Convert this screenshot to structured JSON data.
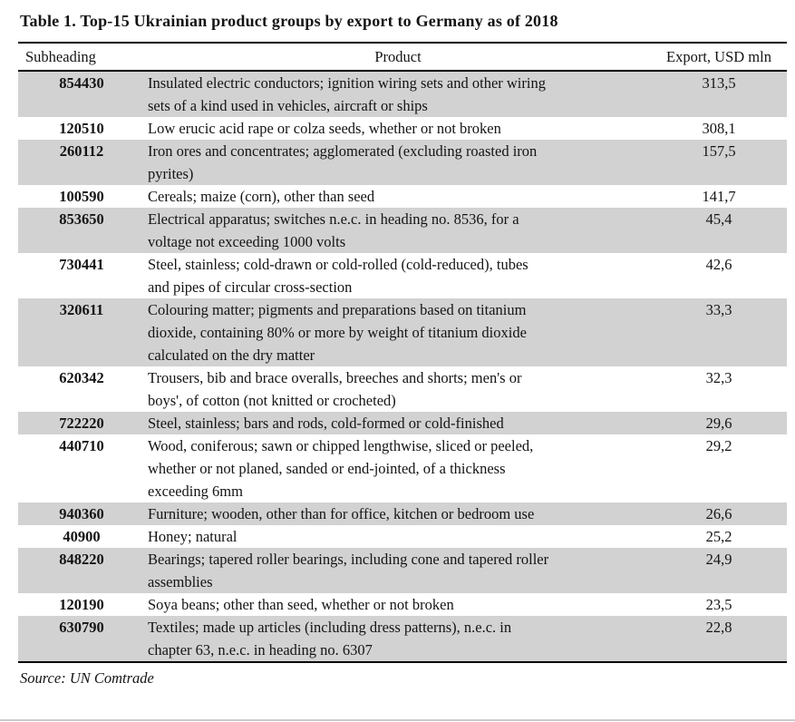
{
  "title": "Table 1. Top-15 Ukrainian product groups by export to Germany as of 2018",
  "columns": {
    "subheading": "Subheading",
    "product": "Product",
    "export": "Export, USD mln"
  },
  "rows": [
    {
      "subheading": "854430",
      "product": "Insulated electric conductors; ignition wiring sets and other wiring\nsets of a kind used in vehicles, aircraft or ships",
      "export": "313,5"
    },
    {
      "subheading": "120510",
      "product": "Low erucic acid rape or colza seeds, whether or not broken",
      "export": "308,1"
    },
    {
      "subheading": "260112",
      "product": "Iron ores and concentrates; agglomerated (excluding roasted iron\npyrites)",
      "export": "157,5"
    },
    {
      "subheading": "100590",
      "product": "Cereals; maize (corn), other than seed",
      "export": "141,7"
    },
    {
      "subheading": "853650",
      "product": "Electrical apparatus; switches n.e.c. in heading no. 8536, for a\nvoltage not exceeding 1000 volts",
      "export": "45,4"
    },
    {
      "subheading": "730441",
      "product": "Steel, stainless; cold-drawn or cold-rolled (cold-reduced), tubes\nand pipes of circular cross-section",
      "export": "42,6"
    },
    {
      "subheading": "320611",
      "product": "Colouring matter; pigments and preparations based on titanium\ndioxide, containing 80% or more by weight of titanium dioxide\ncalculated on the dry matter",
      "export": "33,3"
    },
    {
      "subheading": "620342",
      "product": "Trousers, bib and brace overalls, breeches and shorts; men's or\nboys', of cotton (not knitted or crocheted)",
      "export": "32,3"
    },
    {
      "subheading": "722220",
      "product": "Steel, stainless; bars and rods, cold-formed or cold-finished",
      "export": "29,6"
    },
    {
      "subheading": "440710",
      "product": "Wood, coniferous; sawn or chipped lengthwise, sliced or peeled,\nwhether or not planed, sanded or end-jointed, of a thickness\nexceeding 6mm",
      "export": "29,2"
    },
    {
      "subheading": "940360",
      "product": "Furniture; wooden, other than for office, kitchen or bedroom use",
      "export": "26,6"
    },
    {
      "subheading": "40900",
      "product": "Honey; natural",
      "export": "25,2"
    },
    {
      "subheading": "848220",
      "product": "Bearings; tapered roller bearings, including cone and tapered roller\nassemblies",
      "export": "24,9"
    },
    {
      "subheading": "120190",
      "product": "Soya beans; other than seed, whether or not broken",
      "export": "23,5"
    },
    {
      "subheading": "630790",
      "product": "Textiles; made up articles (including dress patterns), n.e.c. in\nchapter 63, n.e.c. in heading no. 6307",
      "export": "22,8"
    }
  ],
  "source": "Source: UN Comtrade",
  "colors": {
    "row_shade": "#d2d2d2",
    "rule": "#000000",
    "bottom_rule": "#cbcbcb",
    "text": "#141414"
  }
}
